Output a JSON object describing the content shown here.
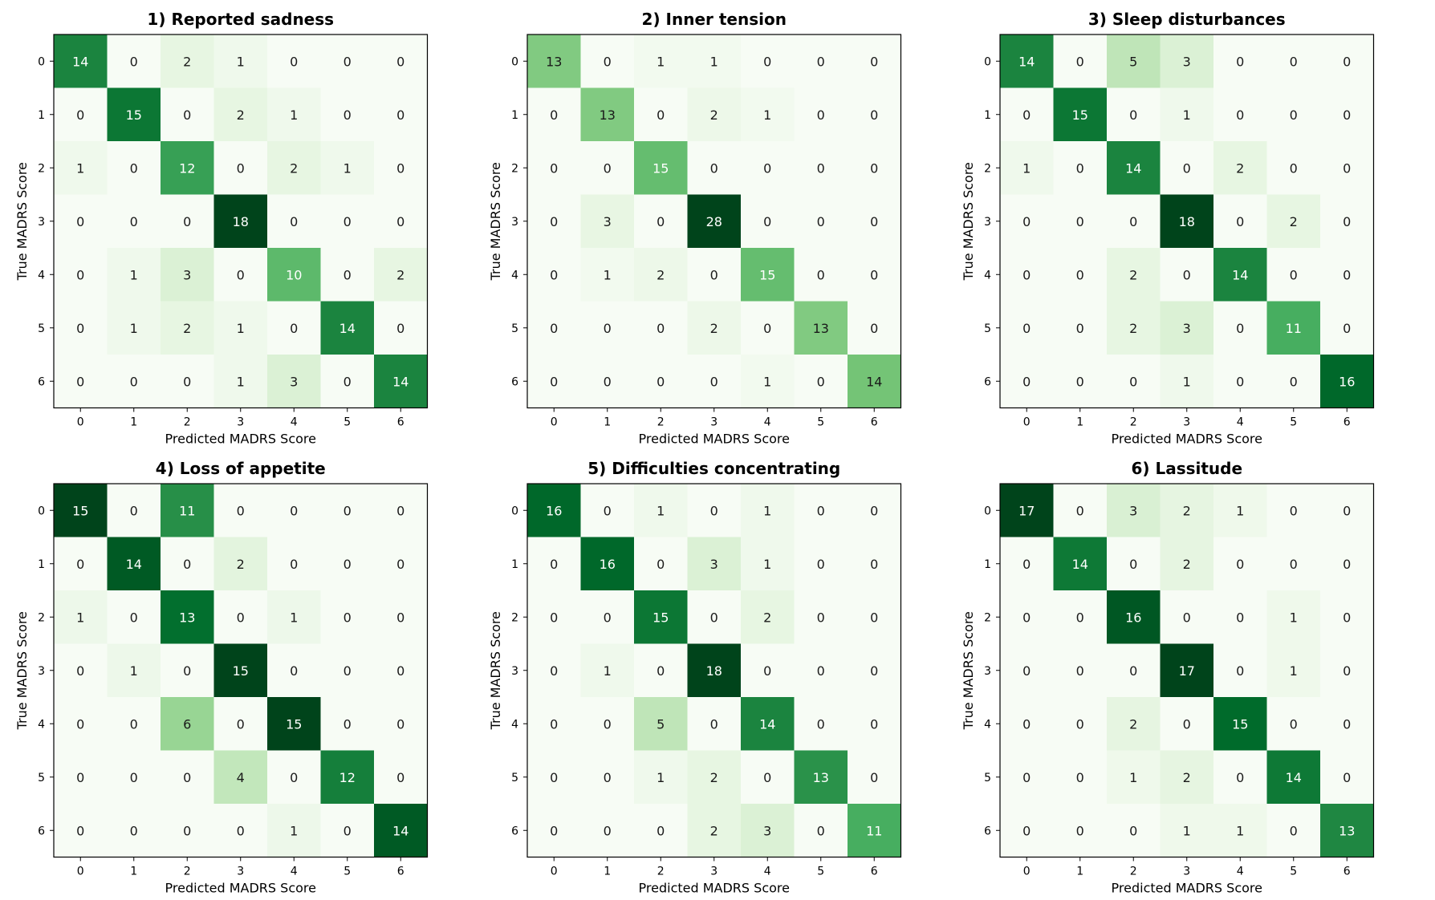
{
  "chart_data": [
    {
      "type": "heatmap",
      "title": "1) Reported sadness",
      "xlabel": "Predicted MADRS Score",
      "ylabel": "True MADRS Score",
      "x_ticks": [
        "0",
        "1",
        "2",
        "3",
        "4",
        "5",
        "6"
      ],
      "y_ticks": [
        "0",
        "1",
        "2",
        "3",
        "4",
        "5",
        "6"
      ],
      "matrix": [
        [
          14,
          0,
          2,
          1,
          0,
          0,
          0
        ],
        [
          0,
          15,
          0,
          2,
          1,
          0,
          0
        ],
        [
          1,
          0,
          12,
          0,
          2,
          1,
          0
        ],
        [
          0,
          0,
          0,
          18,
          0,
          0,
          0
        ],
        [
          0,
          1,
          3,
          0,
          10,
          0,
          2
        ],
        [
          0,
          1,
          2,
          1,
          0,
          14,
          0
        ],
        [
          0,
          0,
          0,
          1,
          3,
          0,
          14
        ]
      ],
      "colormap": "Greens"
    },
    {
      "type": "heatmap",
      "title": "2) Inner tension",
      "xlabel": "Predicted MADRS Score",
      "ylabel": "True MADRS Score",
      "x_ticks": [
        "0",
        "1",
        "2",
        "3",
        "4",
        "5",
        "6"
      ],
      "y_ticks": [
        "0",
        "1",
        "2",
        "3",
        "4",
        "5",
        "6"
      ],
      "matrix": [
        [
          13,
          0,
          1,
          1,
          0,
          0,
          0
        ],
        [
          0,
          13,
          0,
          2,
          1,
          0,
          0
        ],
        [
          0,
          0,
          15,
          0,
          0,
          0,
          0
        ],
        [
          0,
          3,
          0,
          28,
          0,
          0,
          0
        ],
        [
          0,
          1,
          2,
          0,
          15,
          0,
          0
        ],
        [
          0,
          0,
          0,
          2,
          0,
          13,
          0
        ],
        [
          0,
          0,
          0,
          0,
          1,
          0,
          14
        ]
      ],
      "colormap": "Greens"
    },
    {
      "type": "heatmap",
      "title": "3) Sleep disturbances",
      "xlabel": "Predicted MADRS Score",
      "ylabel": "True MADRS Score",
      "x_ticks": [
        "0",
        "1",
        "2",
        "3",
        "4",
        "5",
        "6"
      ],
      "y_ticks": [
        "0",
        "1",
        "2",
        "3",
        "4",
        "5",
        "6"
      ],
      "matrix": [
        [
          14,
          0,
          5,
          3,
          0,
          0,
          0
        ],
        [
          0,
          15,
          0,
          1,
          0,
          0,
          0
        ],
        [
          1,
          0,
          14,
          0,
          2,
          0,
          0
        ],
        [
          0,
          0,
          0,
          18,
          0,
          2,
          0
        ],
        [
          0,
          0,
          2,
          0,
          14,
          0,
          0
        ],
        [
          0,
          0,
          2,
          3,
          0,
          11,
          0
        ],
        [
          0,
          0,
          0,
          1,
          0,
          0,
          16
        ]
      ],
      "colormap": "Greens"
    },
    {
      "type": "heatmap",
      "title": "4) Loss of appetite",
      "xlabel": "Predicted MADRS Score",
      "ylabel": "True MADRS Score",
      "x_ticks": [
        "0",
        "1",
        "2",
        "3",
        "4",
        "5",
        "6"
      ],
      "y_ticks": [
        "0",
        "1",
        "2",
        "3",
        "4",
        "5",
        "6"
      ],
      "matrix": [
        [
          15,
          0,
          11,
          0,
          0,
          0,
          0
        ],
        [
          0,
          14,
          0,
          2,
          0,
          0,
          0
        ],
        [
          1,
          0,
          13,
          0,
          1,
          0,
          0
        ],
        [
          0,
          1,
          0,
          15,
          0,
          0,
          0
        ],
        [
          0,
          0,
          6,
          0,
          15,
          0,
          0
        ],
        [
          0,
          0,
          0,
          4,
          0,
          12,
          0
        ],
        [
          0,
          0,
          0,
          0,
          1,
          0,
          14
        ]
      ],
      "colormap": "Greens"
    },
    {
      "type": "heatmap",
      "title": "5) Difficulties concentrating",
      "xlabel": "Predicted MADRS Score",
      "ylabel": "True MADRS Score",
      "x_ticks": [
        "0",
        "1",
        "2",
        "3",
        "4",
        "5",
        "6"
      ],
      "y_ticks": [
        "0",
        "1",
        "2",
        "3",
        "4",
        "5",
        "6"
      ],
      "matrix": [
        [
          16,
          0,
          1,
          0,
          1,
          0,
          0
        ],
        [
          0,
          16,
          0,
          3,
          1,
          0,
          0
        ],
        [
          0,
          0,
          15,
          0,
          2,
          0,
          0
        ],
        [
          0,
          1,
          0,
          18,
          0,
          0,
          0
        ],
        [
          0,
          0,
          5,
          0,
          14,
          0,
          0
        ],
        [
          0,
          0,
          1,
          2,
          0,
          13,
          0
        ],
        [
          0,
          0,
          0,
          2,
          3,
          0,
          11
        ]
      ],
      "colormap": "Greens"
    },
    {
      "type": "heatmap",
      "title": "6) Lassitude",
      "xlabel": "Predicted MADRS Score",
      "ylabel": "True MADRS Score",
      "x_ticks": [
        "0",
        "1",
        "2",
        "3",
        "4",
        "5",
        "6"
      ],
      "y_ticks": [
        "0",
        "1",
        "2",
        "3",
        "4",
        "5",
        "6"
      ],
      "matrix": [
        [
          17,
          0,
          3,
          2,
          1,
          0,
          0
        ],
        [
          0,
          14,
          0,
          2,
          0,
          0,
          0
        ],
        [
          0,
          0,
          16,
          0,
          0,
          1,
          0
        ],
        [
          0,
          0,
          0,
          17,
          0,
          1,
          0
        ],
        [
          0,
          0,
          2,
          0,
          15,
          0,
          0
        ],
        [
          0,
          0,
          1,
          2,
          0,
          14,
          0
        ],
        [
          0,
          0,
          0,
          1,
          1,
          0,
          13
        ]
      ],
      "colormap": "Greens"
    }
  ]
}
